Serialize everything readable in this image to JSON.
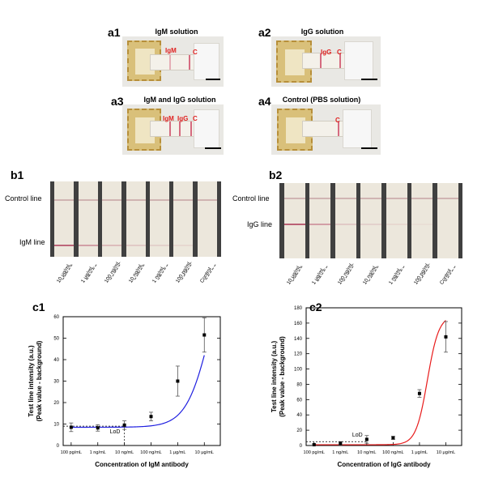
{
  "panels_a": [
    {
      "label": "a1",
      "title": "IgM solution",
      "markers": [
        "IgM",
        "C"
      ]
    },
    {
      "label": "a2",
      "title": "IgG solution",
      "markers": [
        "IgG",
        "C"
      ]
    },
    {
      "label": "a3",
      "title": "IgM and IgG solution",
      "markers": [
        "IgM",
        "IgG",
        "C"
      ]
    },
    {
      "label": "a4",
      "title": "Control (PBS solution)",
      "markers": [
        "C"
      ]
    }
  ],
  "panels_b": [
    {
      "label": "b1",
      "control_label": "Control line",
      "test_label": "IgM line",
      "categories": [
        "10 μg/mL",
        "1 μg/mL",
        "100 ng/mL",
        "10 ng/mL",
        "1 ng/mL",
        "100 pg/mL",
        "Control"
      ]
    },
    {
      "label": "b2",
      "control_label": "Control line",
      "test_label": "IgG line",
      "categories": [
        "10 μg/mL",
        "1 μg/mL",
        "100 ng/mL",
        "10 ng/mL",
        "1 ng/mL",
        "100 pg/mL",
        "Control"
      ]
    }
  ],
  "colors": {
    "igm_curve": "#1f1fe0",
    "igg_curve": "#e81b1b",
    "marker_text": "#e0201f"
  },
  "chart_data": [
    {
      "label": "c1",
      "type": "scatter",
      "xlabel": "Concentration of IgM antibody",
      "ylabel_line1": "Test line intensity (a.u.)",
      "ylabel_line2": "(Peak value - background)",
      "categories": [
        "100 pg/mL",
        "1 ng/mL",
        "10 ng/mL",
        "100 ng/mL",
        "1 μg/mL",
        "10 μg/mL"
      ],
      "x": [
        2,
        3,
        4,
        5,
        6,
        7
      ],
      "values": [
        8.5,
        8.2,
        9.5,
        13.5,
        30.0,
        51.5
      ],
      "errors": [
        2.0,
        1.5,
        2.0,
        2.0,
        7.0,
        8.0
      ],
      "fit_curve": {
        "bottom": 8.5,
        "top": 100,
        "log_ec50": 7.25,
        "hill": 0.95
      },
      "lod": {
        "label": "LoD",
        "value": 9
      },
      "ylim": [
        0,
        60
      ],
      "yticks": [
        0,
        10,
        20,
        30,
        40,
        50,
        60
      ],
      "xlim": [
        1.7,
        7.6
      ]
    },
    {
      "label": "c2",
      "type": "scatter",
      "xlabel": "Concentration of IgG antibody",
      "ylabel_line1": "Test line intensity (a.u.)",
      "ylabel_line2": "(Peak value - background)",
      "categories": [
        "100 pg/mL",
        "1 ng/mL",
        "10 ng/mL",
        "100 ng/mL",
        "1 μg/mL",
        "10 μg/mL"
      ],
      "x": [
        2,
        3,
        4,
        5,
        6,
        7
      ],
      "values": [
        1.0,
        3.0,
        8.0,
        10.0,
        68.0,
        142.0
      ],
      "errors": [
        1.0,
        2.0,
        5.0,
        2.0,
        5.0,
        20.0
      ],
      "fit_curve": {
        "bottom": 1,
        "top": 170,
        "log_ec50": 6.3,
        "hill": 2.0
      },
      "lod": {
        "label": "LoD",
        "value": 5
      },
      "ylim": [
        0,
        180
      ],
      "yticks": [
        0,
        20,
        40,
        60,
        80,
        100,
        120,
        140,
        160,
        180
      ],
      "xlim": [
        1.7,
        7.6
      ]
    }
  ]
}
